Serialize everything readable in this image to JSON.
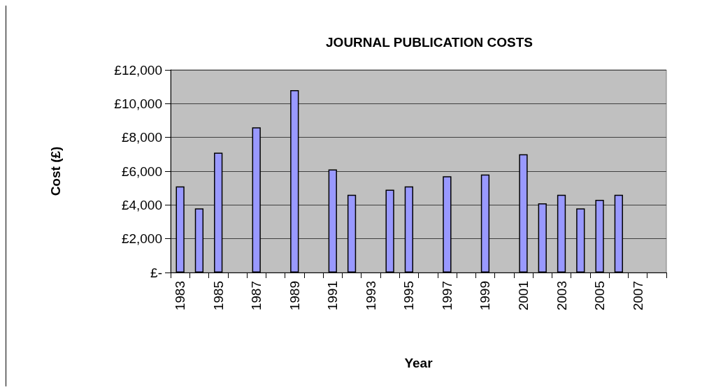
{
  "chart_data": {
    "type": "bar",
    "title": "JOURNAL PUBLICATION COSTS",
    "xlabel": "Year",
    "ylabel": "Cost (£)",
    "categories": [
      "1983",
      null,
      "1985",
      null,
      "1987",
      null,
      "1989",
      null,
      "1991",
      null,
      "1993",
      null,
      "1995",
      null,
      "1997",
      null,
      "1999",
      null,
      "2001",
      null,
      "2003",
      null,
      "2005",
      null,
      "2007",
      null
    ],
    "values": [
      5100,
      3800,
      7100,
      null,
      8600,
      null,
      10800,
      null,
      6100,
      4600,
      null,
      4900,
      5100,
      null,
      5700,
      null,
      5800,
      null,
      7000,
      4100,
      4600,
      3800,
      4300,
      4600,
      null,
      null
    ],
    "color": "#9999ff",
    "ylim": [
      0,
      12000
    ],
    "yticks": [
      {
        "value": 0,
        "label": "£-"
      },
      {
        "value": 2000,
        "label": "£2,000"
      },
      {
        "value": 4000,
        "label": "£4,000"
      },
      {
        "value": 6000,
        "label": "£6,000"
      },
      {
        "value": 8000,
        "label": "£8,000"
      },
      {
        "value": 10000,
        "label": "£10,000"
      },
      {
        "value": 12000,
        "label": "£12,000"
      }
    ],
    "grid": "y"
  }
}
